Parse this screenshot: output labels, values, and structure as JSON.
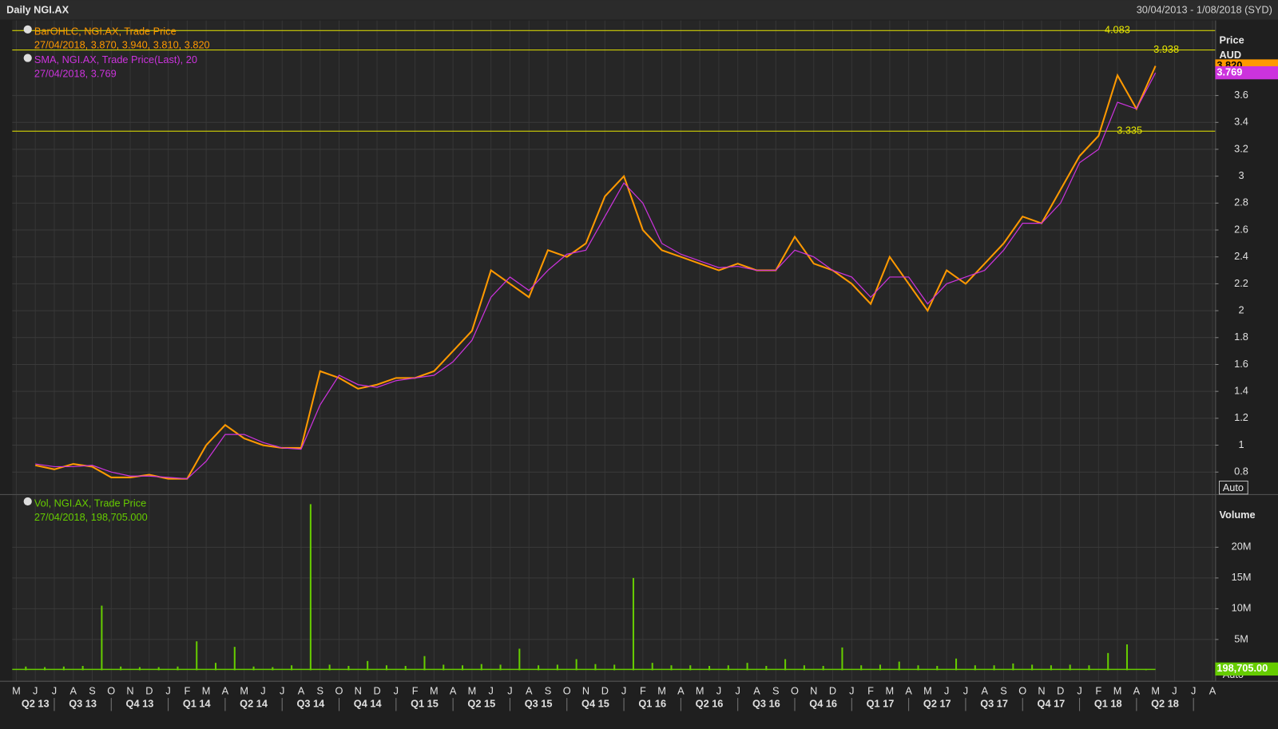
{
  "header": {
    "title": "Daily NGI.AX",
    "range": "30/04/2013 - 1/08/2018 (SYD)"
  },
  "chart_data": [
    {
      "type": "line",
      "y_label": "Price",
      "unit": "AUD",
      "scale_mode": "Auto",
      "grid": true,
      "months": [
        "M",
        "J",
        "J",
        "A",
        "S",
        "O",
        "N",
        "D",
        "J",
        "F",
        "M",
        "A",
        "M",
        "J",
        "J",
        "A",
        "S",
        "O",
        "N",
        "D",
        "J",
        "F",
        "M",
        "A",
        "M",
        "J",
        "J",
        "A",
        "S",
        "O",
        "N",
        "D",
        "J",
        "F",
        "M",
        "A",
        "M",
        "J",
        "J",
        "A",
        "S",
        "O",
        "N",
        "D",
        "J",
        "F",
        "M",
        "A",
        "M",
        "J",
        "J",
        "A",
        "S",
        "O",
        "N",
        "D",
        "J",
        "F",
        "M",
        "A",
        "M",
        "J",
        "J",
        "A"
      ],
      "quarters": [
        "Q2 13",
        "Q3 13",
        "Q4 13",
        "Q1 14",
        "Q2 14",
        "Q3 14",
        "Q4 14",
        "Q1 15",
        "Q2 15",
        "Q3 15",
        "Q4 15",
        "Q1 16",
        "Q2 16",
        "Q3 16",
        "Q4 16",
        "Q1 17",
        "Q2 17",
        "Q3 17",
        "Q4 17",
        "Q1 18",
        "Q2 18"
      ],
      "x": [
        "2013-05",
        "2013-06",
        "2013-07",
        "2013-08",
        "2013-09",
        "2013-10",
        "2013-11",
        "2013-12",
        "2014-01",
        "2014-02",
        "2014-03",
        "2014-04",
        "2014-05",
        "2014-06",
        "2014-07",
        "2014-08",
        "2014-09",
        "2014-10",
        "2014-11",
        "2014-12",
        "2015-01",
        "2015-02",
        "2015-03",
        "2015-04",
        "2015-05",
        "2015-06",
        "2015-07",
        "2015-08",
        "2015-09",
        "2015-10",
        "2015-11",
        "2015-12",
        "2016-01",
        "2016-02",
        "2016-03",
        "2016-04",
        "2016-05",
        "2016-06",
        "2016-07",
        "2016-08",
        "2016-09",
        "2016-10",
        "2016-11",
        "2016-12",
        "2017-01",
        "2017-02",
        "2017-03",
        "2017-04",
        "2017-05",
        "2017-06",
        "2017-07",
        "2017-08",
        "2017-09",
        "2017-10",
        "2017-11",
        "2017-12",
        "2018-01",
        "2018-02",
        "2018-03",
        "2018-04"
      ],
      "series": [
        {
          "name": "BarOHLC, NGI.AX, Trade Price",
          "legend_detail": "27/04/2018, 3.870, 3.940, 3.810, 3.820",
          "color": "#ff9900",
          "last": {
            "value": 3.82,
            "label": "3.820"
          },
          "values": [
            0.85,
            0.82,
            0.86,
            0.84,
            0.76,
            0.76,
            0.78,
            0.75,
            0.75,
            1.0,
            1.15,
            1.05,
            1.0,
            0.98,
            0.98,
            1.55,
            1.5,
            1.42,
            1.45,
            1.5,
            1.5,
            1.55,
            1.7,
            1.85,
            2.3,
            2.2,
            2.1,
            2.45,
            2.4,
            2.5,
            2.85,
            3.0,
            2.6,
            2.45,
            2.4,
            2.35,
            2.3,
            2.35,
            2.3,
            2.3,
            2.55,
            2.35,
            2.3,
            2.2,
            2.05,
            2.4,
            2.2,
            2.0,
            2.3,
            2.2,
            2.35,
            2.5,
            2.7,
            2.65,
            2.9,
            3.15,
            3.3,
            3.75,
            3.5,
            3.82
          ]
        },
        {
          "name": "SMA, NGI.AX, Trade Price(Last),  20",
          "legend_detail": "27/04/2018, 3.769",
          "color": "#cc33dd",
          "last": {
            "value": 3.769,
            "label": "3.769"
          },
          "values": [
            0.86,
            0.84,
            0.84,
            0.85,
            0.8,
            0.77,
            0.77,
            0.76,
            0.75,
            0.88,
            1.08,
            1.08,
            1.02,
            0.98,
            0.97,
            1.3,
            1.52,
            1.45,
            1.43,
            1.48,
            1.5,
            1.52,
            1.62,
            1.78,
            2.1,
            2.25,
            2.15,
            2.3,
            2.42,
            2.45,
            2.7,
            2.95,
            2.8,
            2.5,
            2.42,
            2.37,
            2.32,
            2.33,
            2.3,
            2.3,
            2.45,
            2.4,
            2.3,
            2.25,
            2.1,
            2.25,
            2.25,
            2.05,
            2.2,
            2.25,
            2.3,
            2.45,
            2.65,
            2.65,
            2.8,
            3.1,
            3.2,
            3.55,
            3.5,
            3.769
          ]
        }
      ],
      "levels": [
        4.083,
        3.938,
        3.335
      ],
      "level_color": "#e6e600",
      "ylim": [
        0.636,
        4.158
      ],
      "yticks": [
        0.8,
        1,
        1.2,
        1.4,
        1.6,
        1.8,
        2,
        2.2,
        2.4,
        2.6,
        2.8,
        3,
        3.2,
        3.4,
        3.6
      ]
    },
    {
      "type": "bar",
      "y_label": "Volume",
      "scale_mode": "Auto",
      "grid": true,
      "x": [
        "2013-05",
        "2013-06",
        "2013-07",
        "2013-08",
        "2013-09",
        "2013-10",
        "2013-11",
        "2013-12",
        "2014-01",
        "2014-02",
        "2014-03",
        "2014-04",
        "2014-05",
        "2014-06",
        "2014-07",
        "2014-08",
        "2014-09",
        "2014-10",
        "2014-11",
        "2014-12",
        "2015-01",
        "2015-02",
        "2015-03",
        "2015-04",
        "2015-05",
        "2015-06",
        "2015-07",
        "2015-08",
        "2015-09",
        "2015-10",
        "2015-11",
        "2015-12",
        "2016-01",
        "2016-02",
        "2016-03",
        "2016-04",
        "2016-05",
        "2016-06",
        "2016-07",
        "2016-08",
        "2016-09",
        "2016-10",
        "2016-11",
        "2016-12",
        "2017-01",
        "2017-02",
        "2017-03",
        "2017-04",
        "2017-05",
        "2017-06",
        "2017-07",
        "2017-08",
        "2017-09",
        "2017-10",
        "2017-11",
        "2017-12",
        "2018-01",
        "2018-02",
        "2018-03",
        "2018-04"
      ],
      "series": [
        {
          "name": "Vol, NGI.AX, Trade Price",
          "legend_detail": "27/04/2018, 198,705.000",
          "color": "#66cc00",
          "last": {
            "value": 198705,
            "label": "198,705.00"
          },
          "values": [
            600000,
            500000,
            600000,
            700000,
            10500000,
            600000,
            500000,
            500000,
            600000,
            4700000,
            1200000,
            3800000,
            600000,
            500000,
            800000,
            27000000,
            900000,
            700000,
            1500000,
            800000,
            700000,
            2300000,
            900000,
            800000,
            1000000,
            900000,
            3500000,
            800000,
            900000,
            1800000,
            1000000,
            900000,
            15000000,
            1200000,
            800000,
            800000,
            700000,
            800000,
            1200000,
            700000,
            1800000,
            800000,
            700000,
            3700000,
            800000,
            900000,
            1400000,
            800000,
            700000,
            1900000,
            800000,
            800000,
            1100000,
            900000,
            800000,
            900000,
            800000,
            2800000,
            4200000,
            198705
          ]
        }
      ],
      "ylim": [
        0,
        28500000
      ],
      "yticks": [
        {
          "value": 5000000,
          "label": "5M"
        },
        {
          "value": 10000000,
          "label": "10M"
        },
        {
          "value": 15000000,
          "label": "15M"
        },
        {
          "value": 20000000,
          "label": "20M"
        }
      ]
    }
  ]
}
